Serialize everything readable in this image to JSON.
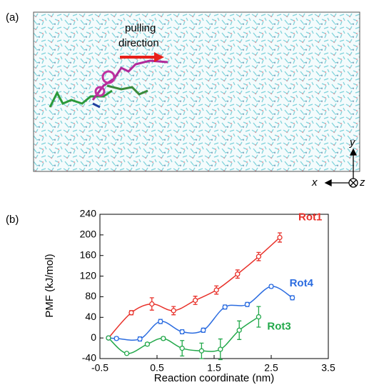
{
  "panel_a": {
    "label": "(a)",
    "arrow_text_1": "pulling",
    "arrow_text_2": "direction",
    "axis_y": "y",
    "axis_x": "x",
    "axis_z": "z"
  },
  "chart_data": {
    "type": "line",
    "panel_label": "(b)",
    "xlabel": "Reaction coordinate (nm)",
    "ylabel": "PMF (kJ/mol)",
    "xlim": [
      -0.5,
      3.5
    ],
    "xticks": [
      -0.5,
      0.5,
      1.5,
      2.5,
      3.5
    ],
    "ylim": [
      -40,
      240
    ],
    "yticks": [
      -40,
      0,
      40,
      80,
      120,
      160,
      200,
      240
    ],
    "series": [
      {
        "name": "Rot1",
        "color": "#e8312a",
        "x": [
          -0.35,
          0.05,
          0.41,
          0.79,
          1.17,
          1.54,
          1.91,
          2.28,
          2.65
        ],
        "values": [
          0,
          49,
          66,
          53,
          73,
          93,
          124,
          158,
          195
        ],
        "errors": [
          2,
          4,
          12,
          8,
          8,
          8,
          8,
          8,
          9
        ]
      },
      {
        "name": "Rot4",
        "color": "#2b6ce0",
        "x": [
          -0.35,
          -0.21,
          0.2,
          0.56,
          0.94,
          1.31,
          1.69,
          2.08,
          2.5,
          2.87
        ],
        "values": [
          0,
          -1,
          -2,
          32,
          12,
          15,
          60,
          65,
          100,
          78
        ],
        "errors": [
          2,
          3,
          4,
          4,
          4,
          4,
          4,
          4,
          3,
          4
        ]
      },
      {
        "name": "Rot3",
        "color": "#22a84a",
        "x": [
          -0.35,
          -0.03,
          0.33,
          0.61,
          0.94,
          1.28,
          1.61,
          1.94,
          2.28
        ],
        "values": [
          0,
          -30,
          -12,
          -1,
          -20,
          -25,
          -22,
          15,
          41
        ],
        "errors": [
          2,
          2,
          3,
          3,
          15,
          15,
          20,
          18,
          20
        ]
      }
    ]
  }
}
